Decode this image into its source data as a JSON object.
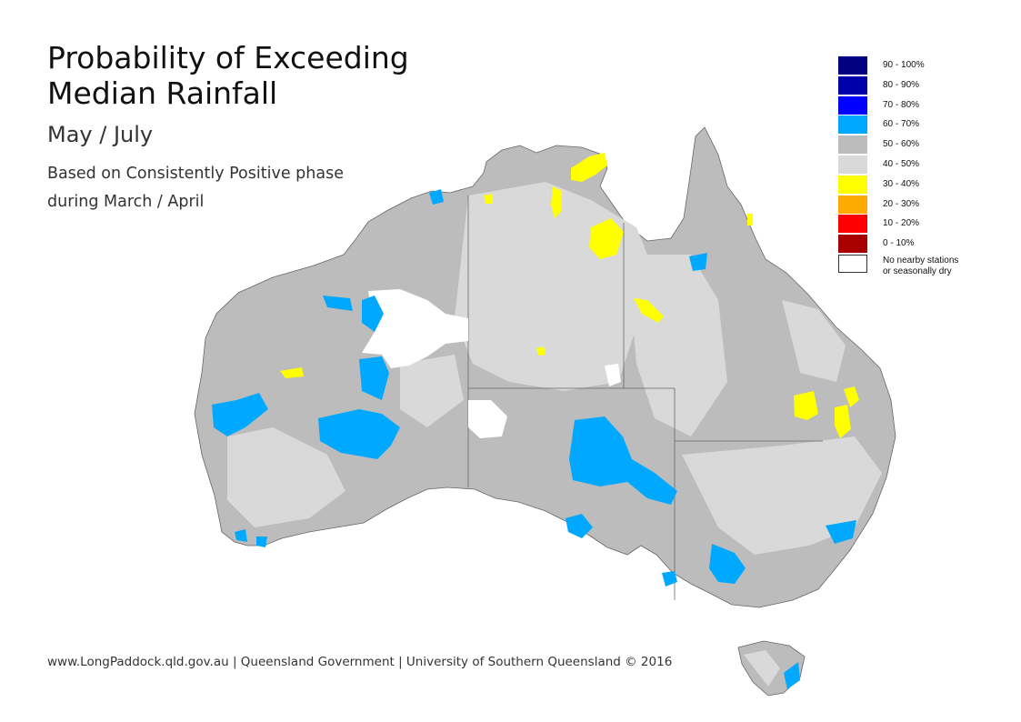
{
  "title_line1": "Probability of Exceeding",
  "title_line2": "Median Rainfall",
  "period": "May / July",
  "basis_line1": "Based on Consistently Positive phase",
  "basis_line2": "during March / April",
  "footer": "www.LongPaddock.qld.gov.au | Queensland Government | University of Southern Queensland © 2016",
  "legend": [
    {
      "label": "90 - 100%",
      "color": "#000080"
    },
    {
      "label": "80 - 90%",
      "color": "#0000a8"
    },
    {
      "label": "70 - 80%",
      "color": "#0000ff"
    },
    {
      "label": "60 - 70%",
      "color": "#00a8ff"
    },
    {
      "label": "50 - 60%",
      "color": "#bcbcbc"
    },
    {
      "label": "40 - 50%",
      "color": "#d9d9d9"
    },
    {
      "label": "30 - 40%",
      "color": "#ffff00"
    },
    {
      "label": "20 - 30%",
      "color": "#ffaa00"
    },
    {
      "label": "10 - 20%",
      "color": "#ff0000"
    },
    {
      "label": "0 - 10%",
      "color": "#a80000"
    }
  ],
  "legend_nodata_line1": "No nearby stations",
  "legend_nodata_line2": "or seasonally dry",
  "legend_nodata_color": "#ffffff"
}
